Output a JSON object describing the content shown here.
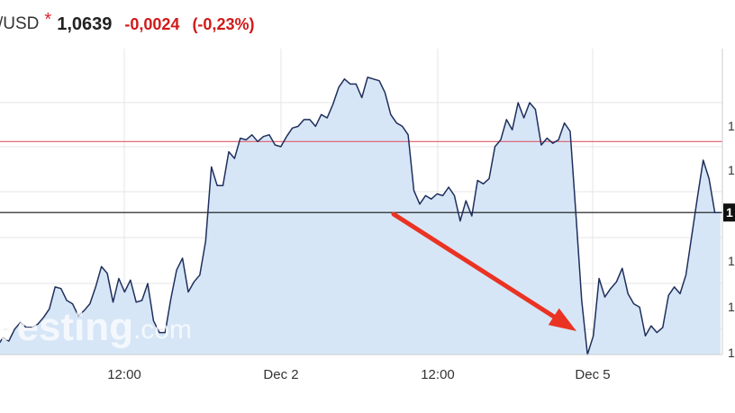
{
  "header": {
    "pair": "/USD",
    "star": "*",
    "price": "1,0639",
    "change": "-0,0024",
    "change_pct": "(-0,23%)"
  },
  "watermark": {
    "brand": "vesting",
    "suffix": ".com"
  },
  "colors": {
    "line": "#1f2f5c",
    "fill": "#d6e6f7",
    "reference_line": "#e05a6a",
    "current_line": "#111111",
    "grid": "#e4e4e4",
    "arrow": "#ea3323",
    "price_tag_bg": "#111111"
  },
  "chart_data": {
    "type": "area",
    "x_tick_labels": [
      "12:00",
      "Dec 2",
      "12:00",
      "Dec 5"
    ],
    "y_tick_labels": [
      "1",
      "1",
      "1",
      "1",
      "1",
      "1",
      "1"
    ],
    "current_value_label": "1",
    "ylim": [
      1.0555,
      1.0736
    ],
    "reference_value": 1.0681,
    "current_value": 1.0639,
    "grid": true,
    "annotation": "red arrow pointing to the Dec 5 low",
    "series": [
      {
        "values": [
          1.056,
          1.0565,
          1.0563,
          1.057,
          1.0574,
          1.0571,
          1.0571,
          1.0573,
          1.0577,
          1.0582,
          1.0595,
          1.0594,
          1.0587,
          1.0585,
          1.0578,
          1.0581,
          1.0585,
          1.0595,
          1.0607,
          1.0603,
          1.0586,
          1.06,
          1.0592,
          1.0599,
          1.0586,
          1.0587,
          1.0597,
          1.0575,
          1.0568,
          1.0568,
          1.0588,
          1.0605,
          1.0612,
          1.0592,
          1.0598,
          1.0602,
          1.0622,
          1.0666,
          1.0655,
          1.0655,
          1.0675,
          1.0671,
          1.0683,
          1.0682,
          1.0685,
          1.0681,
          1.0684,
          1.0685,
          1.0679,
          1.0678,
          1.0684,
          1.0689,
          1.069,
          1.0694,
          1.0694,
          1.069,
          1.0697,
          1.0695,
          1.0703,
          1.0713,
          1.0718,
          1.0715,
          1.0715,
          1.0707,
          1.0719,
          1.0718,
          1.0717,
          1.071,
          1.0697,
          1.0692,
          1.069,
          1.0685,
          1.0652,
          1.0644,
          1.0649,
          1.0647,
          1.065,
          1.0649,
          1.0654,
          1.0649,
          1.0634,
          1.0646,
          1.0637,
          1.0658,
          1.0656,
          1.0659,
          1.0678,
          1.0682,
          1.0694,
          1.0688,
          1.0704,
          1.0695,
          1.0704,
          1.07,
          1.0679,
          1.0683,
          1.068,
          1.0682,
          1.0692,
          1.0687,
          1.0638,
          1.0587,
          1.0555,
          1.0566,
          1.06,
          1.0589,
          1.0594,
          1.0598,
          1.0606,
          1.0591,
          1.0585,
          1.0583,
          1.0566,
          1.0572,
          1.0568,
          1.0571,
          1.059,
          1.0595,
          1.0591,
          1.0602,
          1.0625,
          1.0648,
          1.067,
          1.0659,
          1.0639,
          1.0639
        ]
      }
    ]
  }
}
